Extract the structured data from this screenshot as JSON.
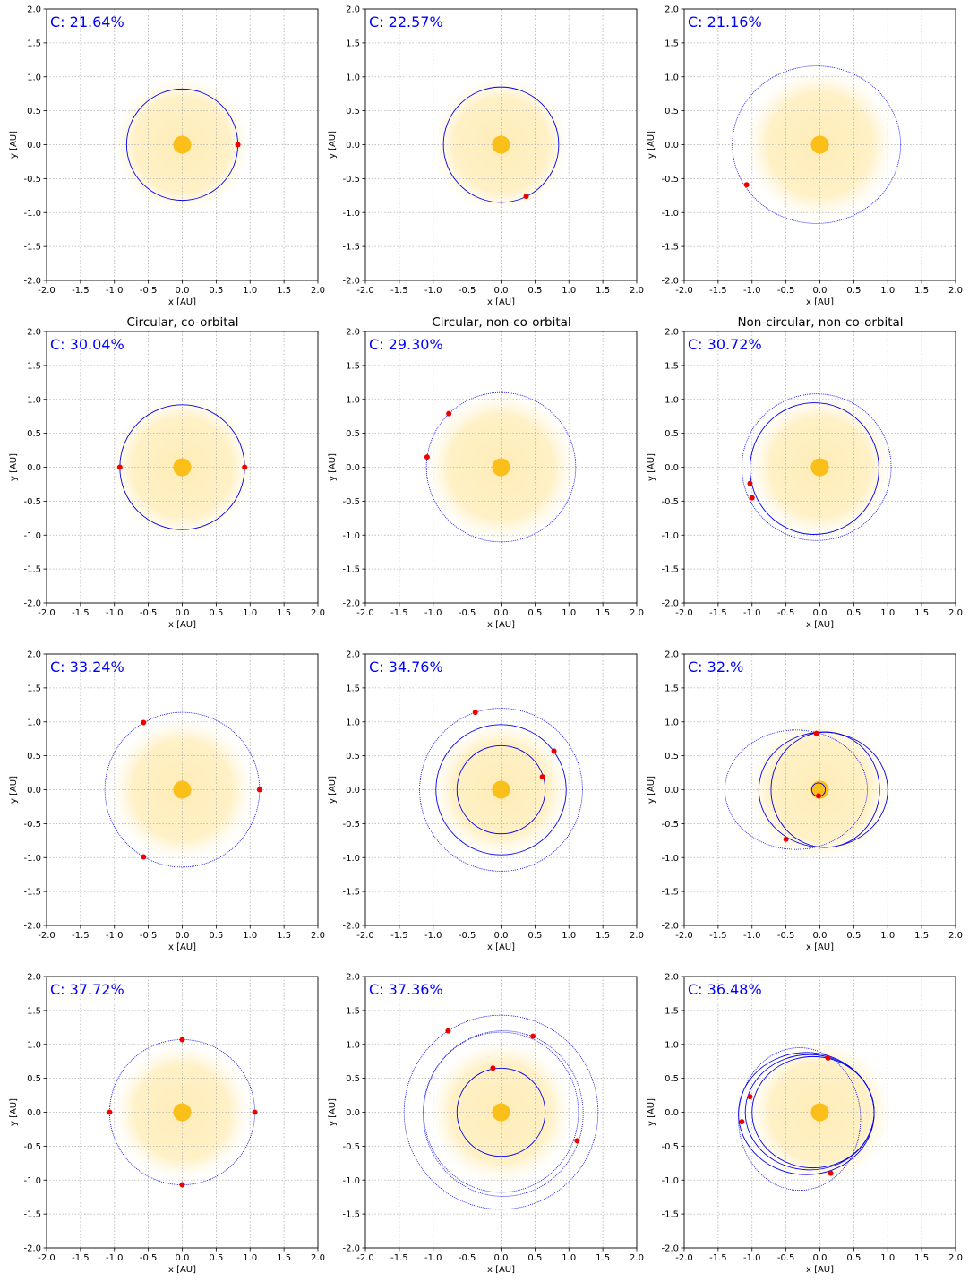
{
  "column_titles": [
    "Circular, co-orbital",
    "Circular, non-co-orbital",
    "Non-circular, non-co-orbital"
  ],
  "colors": {
    "star": "#FBBF1A",
    "habitable_zone": "#FFE9A8",
    "orbit": "#0000EE",
    "planet": "#EE0000",
    "c_label": "#0000FF",
    "grid": "#b0b0b0"
  },
  "chart_data": [
    {
      "type": "scatter",
      "row": 0,
      "col": 0,
      "c_label": "C: 21.64%",
      "xlabel": "x [AU]",
      "ylabel": "y [AU]",
      "xlim": [
        -2,
        2
      ],
      "ylim": [
        -2,
        2
      ],
      "grid": true,
      "hz": {
        "cx": 0,
        "cy": 0,
        "r": 1.0
      },
      "orbits": [
        {
          "cx": 0,
          "cy": 0,
          "rx": 0.82,
          "ry": 0.82,
          "style": "solid"
        }
      ],
      "planets": [
        {
          "x": 0.82,
          "y": 0.0
        }
      ]
    },
    {
      "type": "scatter",
      "row": 0,
      "col": 1,
      "c_label": "C: 22.57%",
      "xlabel": "x [AU]",
      "ylabel": "y [AU]",
      "xlim": [
        -2,
        2
      ],
      "ylim": [
        -2,
        2
      ],
      "grid": true,
      "hz": {
        "cx": 0,
        "cy": 0,
        "r": 1.0
      },
      "orbits": [
        {
          "cx": 0,
          "cy": 0,
          "rx": 0.85,
          "ry": 0.85,
          "style": "solid"
        }
      ],
      "planets": [
        {
          "x": 0.37,
          "y": -0.76
        }
      ]
    },
    {
      "type": "scatter",
      "row": 0,
      "col": 2,
      "c_label": "C: 21.16%",
      "xlabel": "x [AU]",
      "ylabel": "y [AU]",
      "xlim": [
        -2,
        2
      ],
      "ylim": [
        -2,
        2
      ],
      "grid": true,
      "hz": {
        "cx": 0,
        "cy": 0,
        "r": 1.1
      },
      "orbits": [
        {
          "cx": -0.05,
          "cy": 0,
          "rx": 1.24,
          "ry": 1.16,
          "style": "dotted"
        }
      ],
      "planets": [
        {
          "x": -1.08,
          "y": -0.59
        }
      ]
    },
    {
      "type": "scatter",
      "row": 1,
      "col": 0,
      "c_label": "C: 30.04%",
      "xlabel": "x [AU]",
      "ylabel": "y [AU]",
      "xlim": [
        -2,
        2
      ],
      "ylim": [
        -2,
        2
      ],
      "grid": true,
      "hz": {
        "cx": 0,
        "cy": 0,
        "r": 1.05
      },
      "orbits": [
        {
          "cx": 0,
          "cy": 0,
          "rx": 0.92,
          "ry": 0.92,
          "style": "solid"
        }
      ],
      "planets": [
        {
          "x": -0.92,
          "y": 0.0
        },
        {
          "x": 0.92,
          "y": 0.0
        }
      ]
    },
    {
      "type": "scatter",
      "row": 1,
      "col": 1,
      "c_label": "C: 29.30%",
      "xlabel": "x [AU]",
      "ylabel": "y [AU]",
      "xlim": [
        -2,
        2
      ],
      "ylim": [
        -2,
        2
      ],
      "grid": true,
      "hz": {
        "cx": 0,
        "cy": 0,
        "r": 1.1
      },
      "orbits": [
        {
          "cx": 0,
          "cy": 0,
          "rx": 1.1,
          "ry": 1.1,
          "style": "dotted"
        }
      ],
      "planets": [
        {
          "x": -1.09,
          "y": 0.15
        },
        {
          "x": -0.77,
          "y": 0.79
        }
      ]
    },
    {
      "type": "scatter",
      "row": 1,
      "col": 2,
      "c_label": "C: 30.72%",
      "xlabel": "x [AU]",
      "ylabel": "y [AU]",
      "xlim": [
        -2,
        2
      ],
      "ylim": [
        -2,
        2
      ],
      "grid": true,
      "hz": {
        "cx": 0,
        "cy": 0,
        "r": 1.05
      },
      "orbits": [
        {
          "cx": -0.05,
          "cy": 0,
          "rx": 1.1,
          "ry": 1.08,
          "style": "dotted"
        },
        {
          "cx": -0.08,
          "cy": -0.02,
          "rx": 0.95,
          "ry": 0.97,
          "style": "solid"
        }
      ],
      "planets": [
        {
          "x": -1.03,
          "y": -0.24
        },
        {
          "x": -1.0,
          "y": -0.45
        }
      ]
    },
    {
      "type": "scatter",
      "row": 2,
      "col": 0,
      "c_label": "C: 33.24%",
      "xlabel": "x [AU]",
      "ylabel": "y [AU]",
      "xlim": [
        -2,
        2
      ],
      "ylim": [
        -2,
        2
      ],
      "grid": true,
      "hz": {
        "cx": 0,
        "cy": 0,
        "r": 1.05
      },
      "orbits": [
        {
          "cx": 0,
          "cy": 0,
          "rx": 1.14,
          "ry": 1.14,
          "style": "dotted"
        }
      ],
      "planets": [
        {
          "x": -0.57,
          "y": 0.99
        },
        {
          "x": 1.14,
          "y": 0.0
        },
        {
          "x": -0.57,
          "y": -0.99
        }
      ]
    },
    {
      "type": "scatter",
      "row": 2,
      "col": 1,
      "c_label": "C: 34.76%",
      "xlabel": "x [AU]",
      "ylabel": "y [AU]",
      "xlim": [
        -2,
        2
      ],
      "ylim": [
        -2,
        2
      ],
      "grid": true,
      "hz": {
        "cx": 0,
        "cy": 0,
        "r": 1.0
      },
      "orbits": [
        {
          "cx": 0,
          "cy": 0,
          "rx": 1.2,
          "ry": 1.2,
          "style": "dotted"
        },
        {
          "cx": 0,
          "cy": 0,
          "rx": 0.96,
          "ry": 0.96,
          "style": "solid"
        },
        {
          "cx": 0,
          "cy": 0,
          "rx": 0.65,
          "ry": 0.65,
          "style": "solid"
        }
      ],
      "planets": [
        {
          "x": -0.38,
          "y": 1.14
        },
        {
          "x": 0.78,
          "y": 0.57
        },
        {
          "x": 0.61,
          "y": 0.19
        }
      ]
    },
    {
      "type": "scatter",
      "row": 2,
      "col": 2,
      "c_label": "C: 32.%",
      "xlabel": "x [AU]",
      "ylabel": "y [AU]",
      "xlim": [
        -2,
        2
      ],
      "ylim": [
        -2,
        2
      ],
      "grid": true,
      "hz": {
        "cx": 0,
        "cy": 0,
        "r": 1.05
      },
      "orbits": [
        {
          "cx": -0.35,
          "cy": 0,
          "rx": 1.05,
          "ry": 0.88,
          "style": "dotted"
        },
        {
          "cx": 0.05,
          "cy": 0,
          "rx": 0.95,
          "ry": 0.85,
          "style": "solid"
        },
        {
          "cx": 0.08,
          "cy": 0,
          "rx": 0.8,
          "ry": 0.85,
          "style": "solid"
        },
        {
          "cx": -0.02,
          "cy": 0,
          "rx": 0.1,
          "ry": 0.1,
          "style": "solid"
        }
      ],
      "planets": [
        {
          "x": -0.05,
          "y": 0.83
        },
        {
          "x": -0.5,
          "y": -0.73
        },
        {
          "x": -0.02,
          "y": -0.09
        }
      ]
    },
    {
      "type": "scatter",
      "row": 3,
      "col": 0,
      "c_label": "C: 37.72%",
      "xlabel": "x [AU]",
      "ylabel": "y [AU]",
      "xlim": [
        -2,
        2
      ],
      "ylim": [
        -2,
        2
      ],
      "grid": true,
      "hz": {
        "cx": 0,
        "cy": 0,
        "r": 1.0
      },
      "orbits": [
        {
          "cx": 0,
          "cy": 0,
          "rx": 1.07,
          "ry": 1.07,
          "style": "dotted"
        }
      ],
      "planets": [
        {
          "x": 0.0,
          "y": 1.07
        },
        {
          "x": -1.07,
          "y": 0.0
        },
        {
          "x": 1.07,
          "y": 0.0
        },
        {
          "x": 0.0,
          "y": -1.07
        }
      ]
    },
    {
      "type": "scatter",
      "row": 3,
      "col": 1,
      "c_label": "C: 37.36%",
      "xlabel": "x [AU]",
      "ylabel": "y [AU]",
      "xlim": [
        -2,
        2
      ],
      "ylim": [
        -2,
        2
      ],
      "grid": true,
      "hz": {
        "cx": 0,
        "cy": 0,
        "r": 1.05
      },
      "orbits": [
        {
          "cx": 0,
          "cy": 0,
          "rx": 1.43,
          "ry": 1.43,
          "style": "dotted"
        },
        {
          "cx": 0.03,
          "cy": -0.02,
          "rx": 1.18,
          "ry": 1.22,
          "style": "dotted"
        },
        {
          "cx": 0,
          "cy": 0,
          "rx": 1.14,
          "ry": 1.18,
          "style": "dotted"
        },
        {
          "cx": 0,
          "cy": 0,
          "rx": 0.65,
          "ry": 0.65,
          "style": "solid"
        }
      ],
      "planets": [
        {
          "x": -0.78,
          "y": 1.2
        },
        {
          "x": 0.47,
          "y": 1.12
        },
        {
          "x": -0.12,
          "y": 0.65
        },
        {
          "x": 1.12,
          "y": -0.42
        }
      ]
    },
    {
      "type": "scatter",
      "row": 3,
      "col": 2,
      "c_label": "C: 36.48%",
      "xlabel": "x [AU]",
      "ylabel": "y [AU]",
      "xlim": [
        -2,
        2
      ],
      "ylim": [
        -2,
        2
      ],
      "grid": true,
      "hz": {
        "cx": 0,
        "cy": 0,
        "r": 1.05
      },
      "orbits": [
        {
          "cx": -0.3,
          "cy": -0.1,
          "rx": 0.9,
          "ry": 1.05,
          "style": "dotted"
        },
        {
          "cx": -0.2,
          "cy": -0.02,
          "rx": 1.0,
          "ry": 0.9,
          "style": "solid"
        },
        {
          "cx": -0.15,
          "cy": 0,
          "rx": 0.95,
          "ry": 0.85,
          "style": "solid"
        },
        {
          "cx": -0.1,
          "cy": 0,
          "rx": 0.9,
          "ry": 0.82,
          "style": "solid"
        }
      ],
      "planets": [
        {
          "x": 0.12,
          "y": 0.8
        },
        {
          "x": -1.03,
          "y": 0.23
        },
        {
          "x": -1.15,
          "y": -0.14
        },
        {
          "x": 0.16,
          "y": -0.9
        }
      ]
    }
  ]
}
